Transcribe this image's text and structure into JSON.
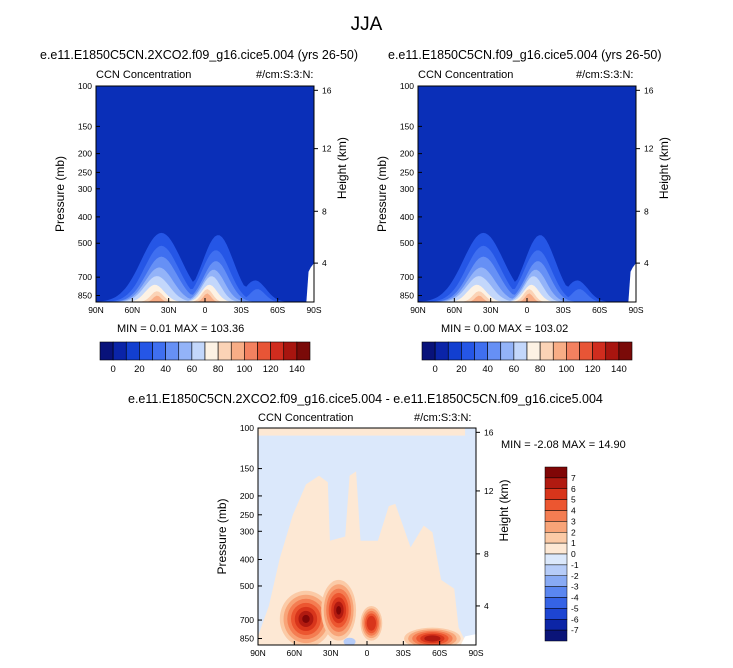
{
  "figure": {
    "title": "JJA"
  },
  "colors": {
    "background": "#ffffff",
    "abs_scale": [
      "#08127a",
      "#0a24a8",
      "#123fd0",
      "#2556e6",
      "#3f6ff0",
      "#6690f5",
      "#93b3f8",
      "#c3d7fb",
      "#fdf2e4",
      "#fbd3b6",
      "#f8ad86",
      "#f38160",
      "#e85536",
      "#d02c1e",
      "#a8150f",
      "#7a0a08"
    ],
    "diff_scale": [
      "#0a1478",
      "#0c25a6",
      "#1d45d2",
      "#3563e6",
      "#5a86f0",
      "#88aaf4",
      "#b6ccf8",
      "#dbe8fb",
      "#fde8d4",
      "#fbcaa6",
      "#f8a478",
      "#f47d52",
      "#ec5630",
      "#d8351b",
      "#b11a10",
      "#800606"
    ]
  },
  "chart_data": [
    {
      "type": "heatmap",
      "title": "e.e11.E1850C5CN.2XCO2.f09_g16.cice5.004 (yrs 26-50)",
      "subtitle_left": "CCN Concentration",
      "subtitle_right": "#/cm:S:3:N:",
      "xlabel": "",
      "ylabel": "Pressure (mb)",
      "ylabel_right": "Height (km)",
      "x_ticks": [
        "90N",
        "60N",
        "30N",
        "0",
        "30S",
        "60S",
        "90S"
      ],
      "y_ticks": [
        "100",
        "150",
        "200",
        "250",
        "300",
        "400",
        "500",
        "700",
        "850"
      ],
      "y_ticks_right": [
        "16",
        "12",
        "8",
        "4"
      ],
      "stats": "MIN =  0.01   MAX = 103.36",
      "min": 0.01,
      "max": 103.36,
      "colorbar_labels": [
        "0",
        "20",
        "40",
        "60",
        "80",
        "100",
        "120",
        "140"
      ],
      "colorbar_range": [
        0,
        150
      ]
    },
    {
      "type": "heatmap",
      "title": "e.e11.E1850C5CN.f09_g16.cice5.004 (yrs 26-50)",
      "subtitle_left": "CCN Concentration",
      "subtitle_right": "#/cm:S:3:N:",
      "xlabel": "",
      "ylabel": "Pressure (mb)",
      "ylabel_right": "Height (km)",
      "x_ticks": [
        "90N",
        "60N",
        "30N",
        "0",
        "30S",
        "60S",
        "90S"
      ],
      "y_ticks": [
        "100",
        "150",
        "200",
        "250",
        "300",
        "400",
        "500",
        "700",
        "850"
      ],
      "y_ticks_right": [
        "16",
        "12",
        "8",
        "4"
      ],
      "stats": "MIN =  0.00   MAX = 103.02",
      "min": 0.0,
      "max": 103.02,
      "colorbar_labels": [
        "0",
        "20",
        "40",
        "60",
        "80",
        "100",
        "120",
        "140"
      ],
      "colorbar_range": [
        0,
        150
      ]
    },
    {
      "type": "heatmap",
      "title": "e.e11.E1850C5CN.2XCO2.f09_g16.cice5.004 - e.e11.E1850C5CN.f09_g16.cice5.004",
      "subtitle_left": "CCN Concentration",
      "subtitle_right": "#/cm:S:3:N:",
      "xlabel": "",
      "ylabel": "Pressure (mb)",
      "ylabel_right": "Height (km)",
      "x_ticks": [
        "90N",
        "60N",
        "30N",
        "0",
        "30S",
        "60S",
        "90S"
      ],
      "y_ticks": [
        "100",
        "150",
        "200",
        "250",
        "300",
        "400",
        "500",
        "700",
        "850"
      ],
      "y_ticks_right": [
        "16",
        "12",
        "8",
        "4"
      ],
      "stats": "MIN =  -2.08   MAX =  14.90",
      "min": -2.08,
      "max": 14.9,
      "colorbar_labels": [
        "7",
        "6",
        "5",
        "4",
        "3",
        "2",
        "1",
        "0",
        "-1",
        "-2",
        "-3",
        "-4",
        "-5",
        "-6",
        "-7"
      ]
    }
  ]
}
